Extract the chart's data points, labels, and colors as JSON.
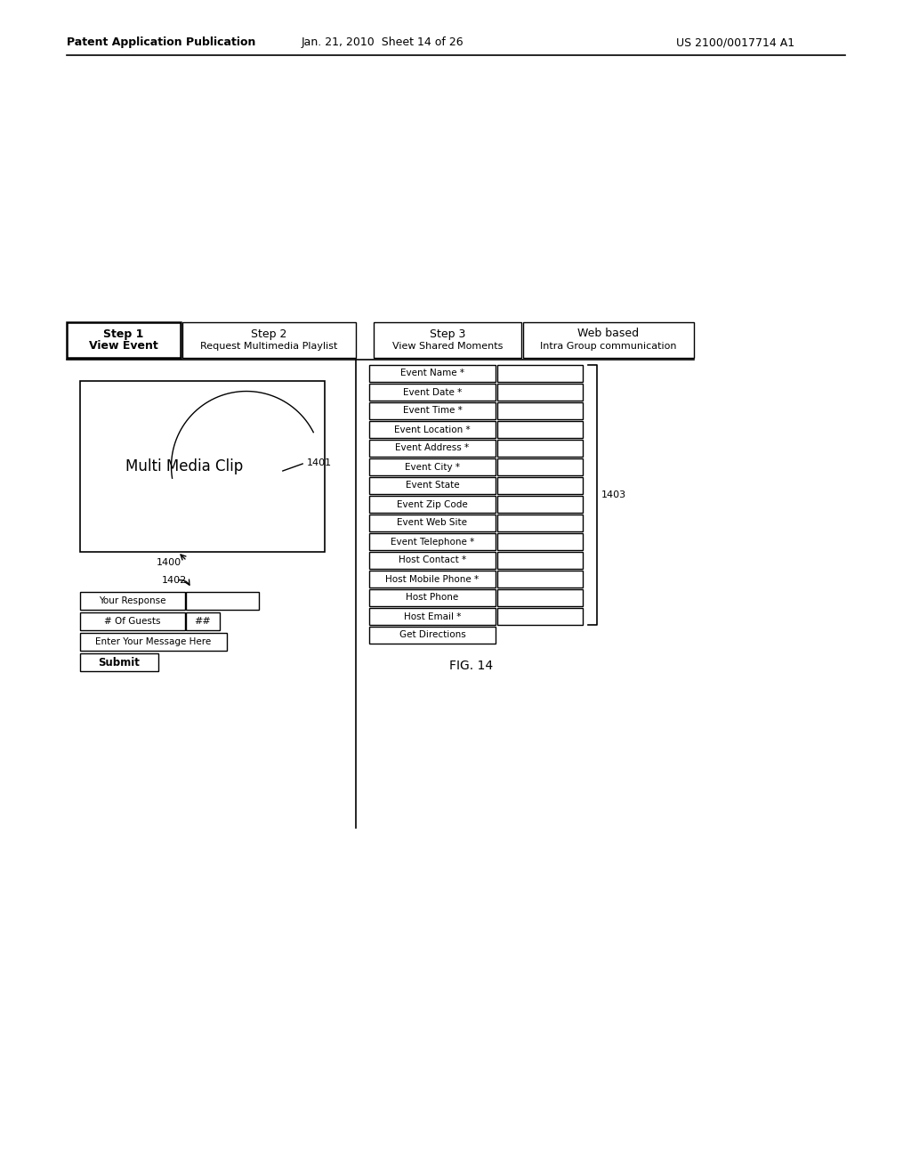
{
  "header_left": "Patent Application Publication",
  "header_center": "Jan. 21, 2010  Sheet 14 of 26",
  "header_right": "US 2100/0017714 A1",
  "fig_label": "FIG. 14",
  "form_fields": [
    "Event Name *",
    "Event Date *",
    "Event Time *",
    "Event Location *",
    "Event Address *",
    "Event City *",
    "Event State",
    "Event Zip Code",
    "Event Web Site",
    "Event Telephone *",
    "Host Contact *",
    "Host Mobile Phone *",
    "Host Phone",
    "Host Email *",
    "Get Directions"
  ],
  "label_1400": "1400",
  "label_1401": "1401",
  "label_1402": "1402",
  "label_1403": "1403",
  "multimedia_text": "Multi Media Clip"
}
